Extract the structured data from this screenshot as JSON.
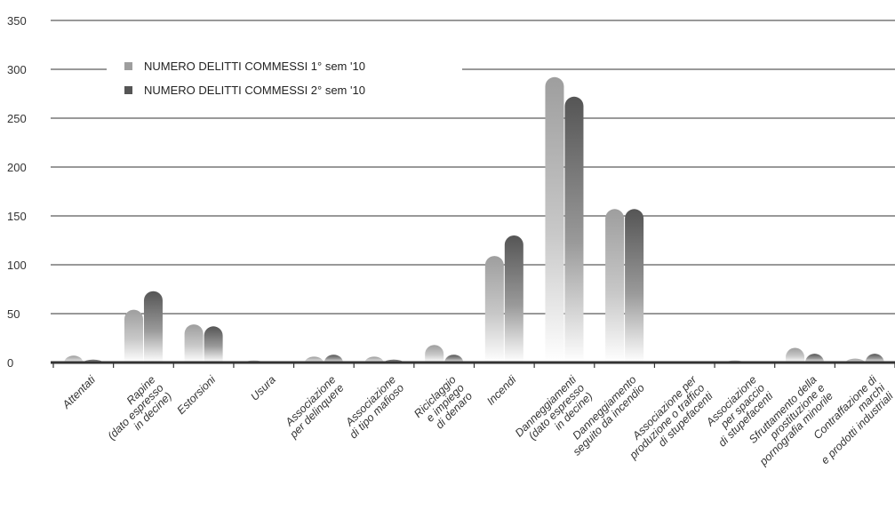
{
  "chart_data": {
    "type": "bar",
    "title": "",
    "xlabel": "",
    "ylabel": "",
    "ylim": [
      0,
      350
    ],
    "yticks": [
      0,
      50,
      100,
      150,
      200,
      250,
      300,
      350
    ],
    "grid": true,
    "legend_position": "top-left",
    "categories": [
      [
        "Attentati"
      ],
      [
        "Rapine",
        "(dato espresso",
        "in decine)"
      ],
      [
        "Estorsioni"
      ],
      [
        "Usura"
      ],
      [
        "Associazione",
        "per delinquere"
      ],
      [
        "Associazione",
        "di tipo mafioso"
      ],
      [
        "Riciclaggio",
        "e impiego",
        "di denaro"
      ],
      [
        "Incendi"
      ],
      [
        "Danneggiamenti",
        "(dato espresso",
        "in decine)"
      ],
      [
        "Danneggiamento",
        "seguito da incendio"
      ],
      [
        "Associazione per",
        "produzione o traffico",
        "di stupefacenti"
      ],
      [
        "Associazione",
        "per spaccio",
        "di stupefacenti"
      ],
      [
        "Sfruttamento della",
        "prostituzione e",
        "pornografia minorile"
      ],
      [
        "Contraffazione di",
        "marchi",
        "e prodotti industriali"
      ]
    ],
    "series": [
      {
        "name": "NUMERO DELITTI COMMESSI 1° sem '10",
        "color": "#9e9e9e",
        "values": [
          7,
          54,
          39,
          2,
          6,
          6,
          18,
          109,
          292,
          157,
          0,
          2,
          15,
          4
        ]
      },
      {
        "name": "NUMERO DELITTI COMMESSI 2° sem '10",
        "color": "#555555",
        "values": [
          3,
          73,
          37,
          0,
          8,
          3,
          8,
          130,
          272,
          157,
          0,
          0,
          9,
          9
        ]
      }
    ]
  }
}
